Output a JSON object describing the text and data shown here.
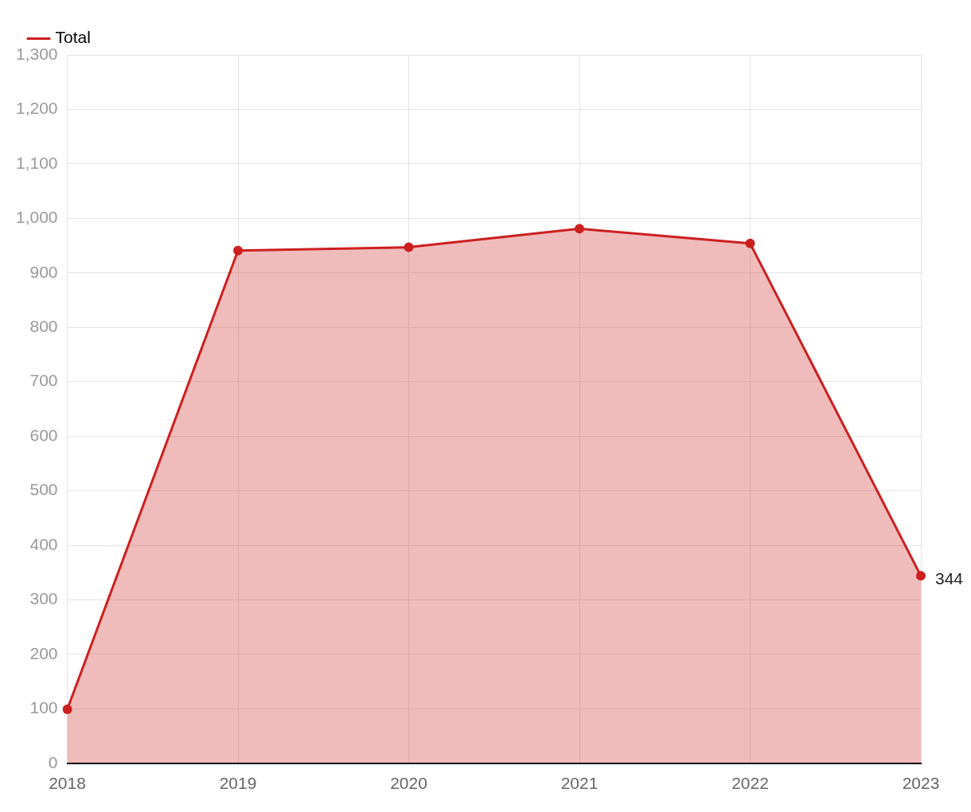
{
  "chart_data": {
    "type": "area",
    "categories": [
      "2018",
      "2019",
      "2020",
      "2021",
      "2022",
      "2023"
    ],
    "series": [
      {
        "name": "Total",
        "color": "#cc1f1f",
        "values": [
          99,
          941,
          947,
          981,
          954,
          344
        ],
        "value_labels": [
          null,
          null,
          null,
          null,
          null,
          "344"
        ]
      }
    ],
    "ylim": [
      0,
      1300
    ],
    "yticks": [
      0,
      100,
      200,
      300,
      400,
      500,
      600,
      700,
      800,
      900,
      {
        "value": 1000,
        "label": "1,000"
      },
      {
        "value": 1100,
        "label": "1,100"
      },
      {
        "value": 1200,
        "label": "1,200"
      },
      {
        "value": 1300,
        "label": "1,300"
      }
    ],
    "grid": true,
    "legend": "top left",
    "marker": "circle"
  }
}
